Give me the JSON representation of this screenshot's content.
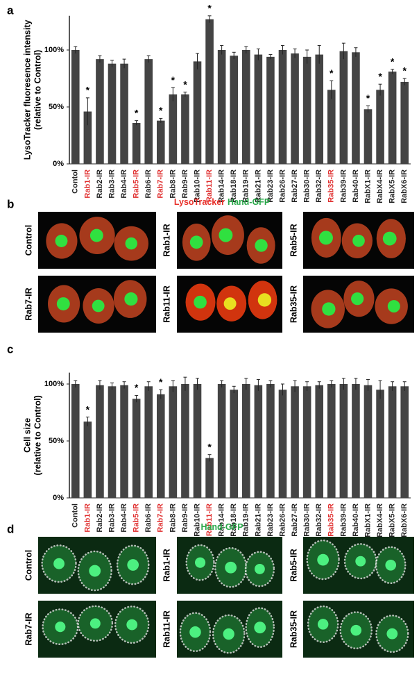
{
  "chart_data": [
    {
      "type": "bar",
      "panel_label": "a",
      "ylabel": [
        "LysoTracker fluoresence intensity",
        "(relative to Control)"
      ],
      "categories": [
        "Contol",
        "Rab1-IR",
        "Rab2-IR",
        "Rab3-IR",
        "Rab4-IR",
        "Rab5-IR",
        "Rab6-IR",
        "Rab7-IR",
        "Rab8-IR",
        "Rab9-IR",
        "Rab10-IR",
        "Rab11-IR",
        "Rab14-IR",
        "Rab18-IR",
        "Rab19-IR",
        "Rab21-IR",
        "Rab23-IR",
        "Rab26-IR",
        "Rab27-IR",
        "Rab30-IR",
        "Rab32-IR",
        "Rab35-IR",
        "Rab39-IR",
        "Rab40-IR",
        "RabX1-IR",
        "RabX4-IR",
        "RabX5-IR",
        "RabX6-IR"
      ],
      "category_colors": [
        "#222",
        "#e03030",
        "#222",
        "#222",
        "#222",
        "#e03030",
        "#222",
        "#e03030",
        "#222",
        "#222",
        "#222",
        "#e03030",
        "#222",
        "#222",
        "#222",
        "#222",
        "#222",
        "#222",
        "#222",
        "#222",
        "#222",
        "#e03030",
        "#222",
        "#222",
        "#222",
        "#222",
        "#222",
        "#222"
      ],
      "values": [
        100,
        46,
        92,
        88,
        88,
        36,
        92,
        38,
        61,
        61,
        90,
        127,
        100,
        95,
        100,
        96,
        94,
        100,
        97,
        94,
        96,
        65,
        99,
        98,
        48,
        65,
        81,
        72
      ],
      "errors": [
        3,
        12,
        3,
        3,
        4,
        2,
        3,
        2,
        6,
        2,
        7,
        3,
        4,
        3,
        3,
        5,
        2,
        4,
        4,
        6,
        8,
        8,
        7,
        4,
        3,
        5,
        2,
        3
      ],
      "significance": [
        null,
        "*",
        null,
        null,
        null,
        "*",
        null,
        "*",
        "*",
        "*",
        null,
        "*",
        null,
        null,
        null,
        null,
        null,
        null,
        null,
        null,
        null,
        "*",
        null,
        null,
        "*",
        "*",
        "*",
        "*"
      ],
      "color": "#444444",
      "ylim": [
        0,
        130
      ],
      "yticks": [
        {
          "value": 0,
          "label": "0%"
        },
        {
          "value": 50,
          "label": "50%"
        },
        {
          "value": 100,
          "label": "100%"
        }
      ]
    },
    {
      "type": "bar",
      "panel_label": "c",
      "ylabel": [
        "Cell size",
        "(relative to Control)"
      ],
      "categories": [
        "Contol",
        "Rab1-IR",
        "Rab2-IR",
        "Rab3-IR",
        "Rab4-IR",
        "Rab5-IR",
        "Rab6-IR",
        "Rab7-IR",
        "Rab8-IR",
        "Rab9-IR",
        "Rab10-IR",
        "Rab11-IR",
        "Rab14-IR",
        "Rab18-IR",
        "Rab19-IR",
        "Rab21-IR",
        "Rab23-IR",
        "Rab26-IR",
        "Rab27-IR",
        "Rab30-IR",
        "Rab32-IR",
        "Rab35-IR",
        "Rab39-IR",
        "Rab40-IR",
        "RabX1-IR",
        "RabX4-IR",
        "RabX5-IR",
        "RabX6-IR"
      ],
      "category_colors": [
        "#222",
        "#e03030",
        "#222",
        "#222",
        "#222",
        "#e03030",
        "#222",
        "#e03030",
        "#222",
        "#222",
        "#222",
        "#e03030",
        "#222",
        "#222",
        "#222",
        "#222",
        "#222",
        "#222",
        "#222",
        "#222",
        "#222",
        "#e03030",
        "#222",
        "#222",
        "#222",
        "#222",
        "#222",
        "#222"
      ],
      "values": [
        100,
        67,
        99,
        98,
        99,
        87,
        98,
        91,
        98,
        100,
        100,
        35,
        100,
        95,
        100,
        99,
        100,
        95,
        98,
        98,
        99,
        100,
        100,
        100,
        99,
        95,
        98,
        98
      ],
      "errors": [
        3,
        4,
        4,
        3,
        3,
        3,
        4,
        4,
        5,
        6,
        5,
        3,
        3,
        3,
        5,
        5,
        3,
        5,
        5,
        4,
        3,
        3,
        5,
        5,
        5,
        8,
        4,
        4
      ],
      "significance": [
        null,
        "*",
        null,
        null,
        null,
        "*",
        null,
        "*",
        null,
        null,
        null,
        "*",
        null,
        null,
        null,
        null,
        null,
        null,
        null,
        null,
        null,
        null,
        null,
        null,
        null,
        null,
        null,
        null
      ],
      "color": "#444444",
      "ylim": [
        0,
        110
      ],
      "yticks": [
        {
          "value": 0,
          "label": "0%"
        },
        {
          "value": 50,
          "label": "50%"
        },
        {
          "value": 100,
          "label": "100%"
        }
      ]
    }
  ],
  "image_figures": [
    {
      "panel_label": "b",
      "style": "lyso",
      "heading": [
        {
          "text": "LysoTracker",
          "color": "#e8302a"
        },
        {
          "text": "Hand-GFP",
          "color": "#2aa84a"
        }
      ],
      "panels": [
        "Control",
        "Rab1-IR",
        "Rab5-IR",
        "Rab7-IR",
        "Rab11-IR",
        "Rab35-IR"
      ]
    },
    {
      "panel_label": "d",
      "style": "gfp",
      "heading": [
        {
          "text": "Hand-GFP",
          "color": "#2aa84a"
        }
      ],
      "panels": [
        "Control",
        "Rab1-IR",
        "Rab5-IR",
        "Rab7-IR",
        "Rab11-IR",
        "Rab35-IR"
      ]
    }
  ]
}
